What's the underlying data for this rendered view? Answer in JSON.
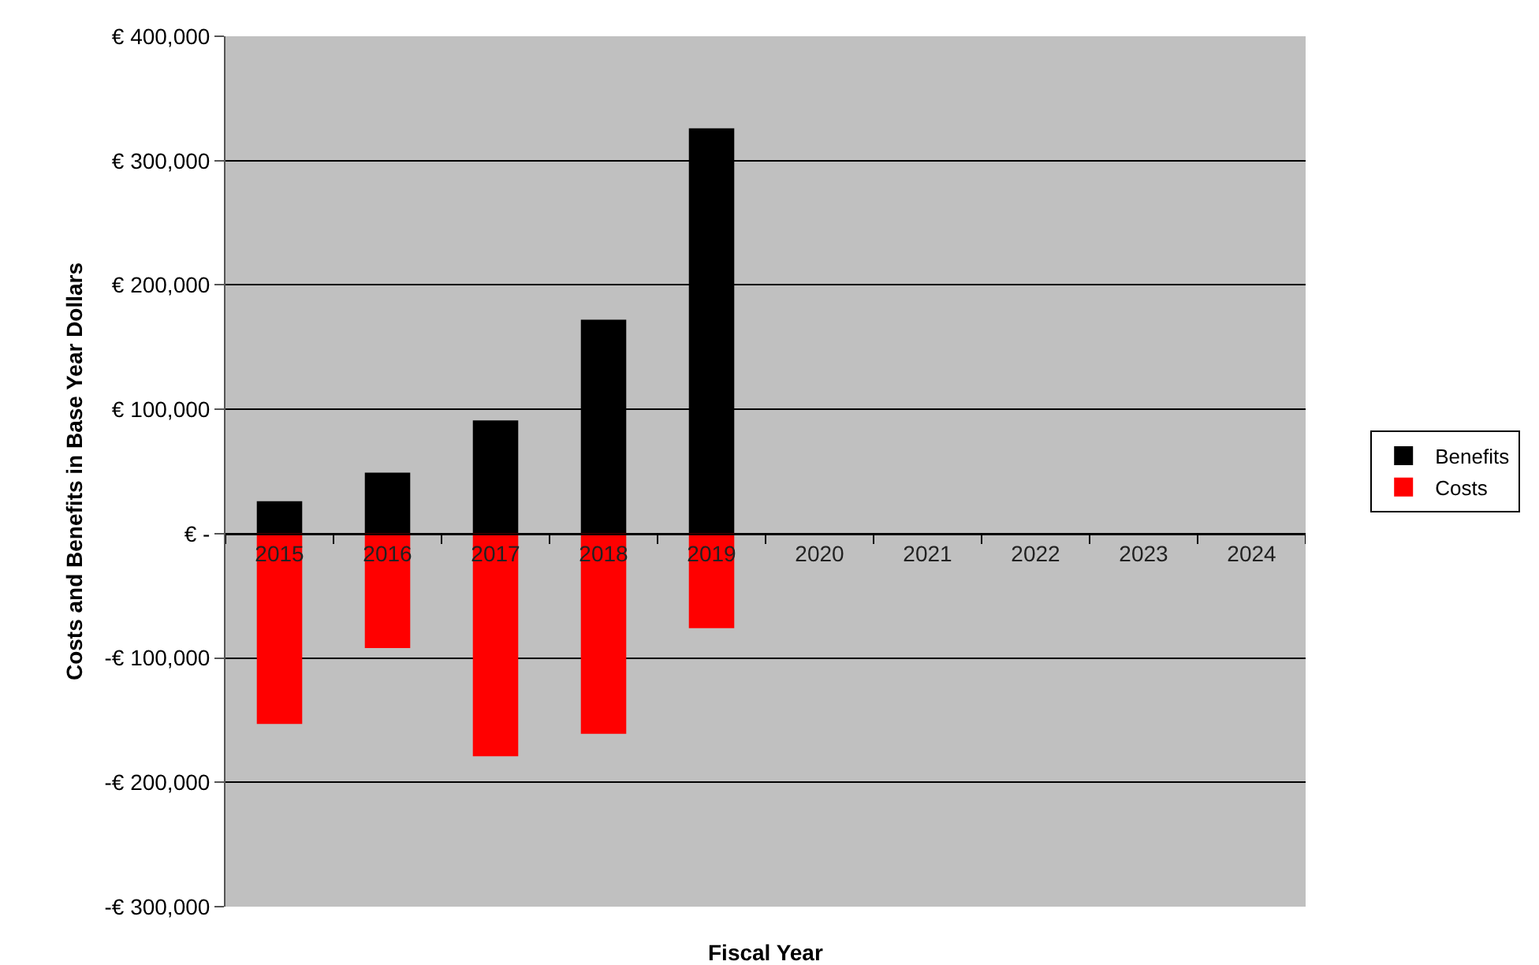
{
  "chart_data": {
    "type": "bar",
    "stacked": true,
    "xlabel": "Fiscal Year",
    "ylabel": "Costs and Benefits in Base Year Dollars",
    "categories": [
      "2015",
      "2016",
      "2017",
      "2018",
      "2019",
      "2020",
      "2021",
      "2022",
      "2023",
      "2024"
    ],
    "series": [
      {
        "name": "Benefits",
        "color": "#000000",
        "values": [
          26000,
          49000,
          91000,
          172000,
          326000,
          null,
          null,
          null,
          null,
          null
        ]
      },
      {
        "name": "Costs",
        "color": "#ff0000",
        "values": [
          -153000,
          -92000,
          -179000,
          -161000,
          -76000,
          null,
          null,
          null,
          null,
          null
        ]
      }
    ],
    "ylim": [
      -300000,
      400000
    ],
    "yticks": [
      {
        "value": -300000,
        "label": "-€ 300,000"
      },
      {
        "value": -200000,
        "label": "-€ 200,000"
      },
      {
        "value": -100000,
        "label": "-€ 100,000"
      },
      {
        "value": 0,
        "label": "€ -"
      },
      {
        "value": 100000,
        "label": "€ 100,000"
      },
      {
        "value": 200000,
        "label": "€ 200,000"
      },
      {
        "value": 300000,
        "label": "€ 300,000"
      },
      {
        "value": 400000,
        "label": "€ 400,000"
      }
    ],
    "grid": "y",
    "legend": "right"
  }
}
